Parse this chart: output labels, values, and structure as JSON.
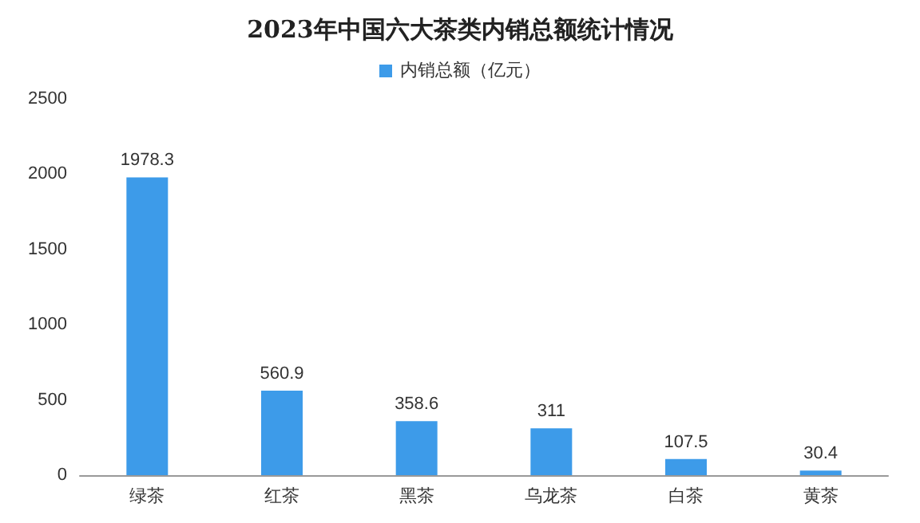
{
  "chart_data": {
    "type": "bar",
    "title": "2023年中国六大茶类内销总额统计情况",
    "categories": [
      "绿茶",
      "红茶",
      "黑茶",
      "乌龙茶",
      "白茶",
      "黄茶"
    ],
    "series": [
      {
        "name": "内销总额（亿元）",
        "color": "#3d9be9",
        "values": [
          1978.3,
          560.9,
          358.6,
          311,
          107.5,
          30.4
        ]
      }
    ],
    "ylim": [
      0,
      2500
    ],
    "yticks": [
      0,
      500,
      1000,
      1500,
      2000,
      2500
    ],
    "grid": false,
    "legend": "top",
    "data_labels": true
  }
}
